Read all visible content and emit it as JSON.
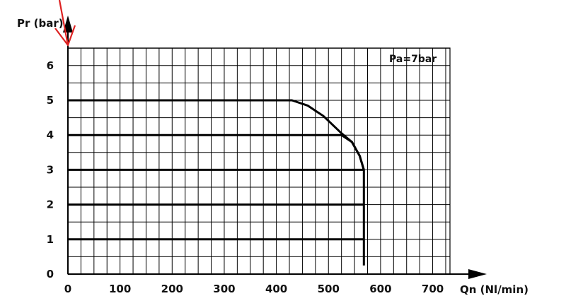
{
  "chart_data": {
    "type": "line",
    "title": "",
    "xlabel": "Qn (Nl/min)",
    "ylabel": "Pr (bar)",
    "xlim": [
      0,
      740
    ],
    "ylim": [
      0,
      6.5
    ],
    "x_ticks": [
      "0",
      "100",
      "200",
      "300",
      "400",
      "500",
      "600",
      "700"
    ],
    "y_ticks": [
      "0",
      "1",
      "2",
      "3",
      "4",
      "5",
      "6"
    ],
    "grid": true,
    "annotation": "Pa=7bar",
    "series": [
      {
        "values": [
          [
            0,
            5
          ],
          [
            430,
            5
          ],
          [
            460,
            4.85
          ],
          [
            490,
            4.55
          ],
          [
            525,
            4.05
          ],
          [
            545,
            3.8
          ],
          [
            560,
            3.4
          ],
          [
            568,
            3.0
          ],
          [
            568,
            0.25
          ]
        ]
      },
      {
        "values": [
          [
            0,
            4
          ],
          [
            525,
            4
          ],
          [
            545,
            3.8
          ],
          [
            560,
            3.4
          ],
          [
            568,
            3.0
          ]
        ]
      },
      {
        "values": [
          [
            0,
            3
          ],
          [
            568,
            3
          ]
        ]
      },
      {
        "values": [
          [
            0,
            2
          ],
          [
            568,
            2
          ]
        ]
      },
      {
        "values": [
          [
            0,
            1
          ],
          [
            568,
            1
          ]
        ]
      }
    ],
    "colors": {
      "line": "#000000",
      "grid": "#000000",
      "arrow": "#dd2222"
    }
  }
}
